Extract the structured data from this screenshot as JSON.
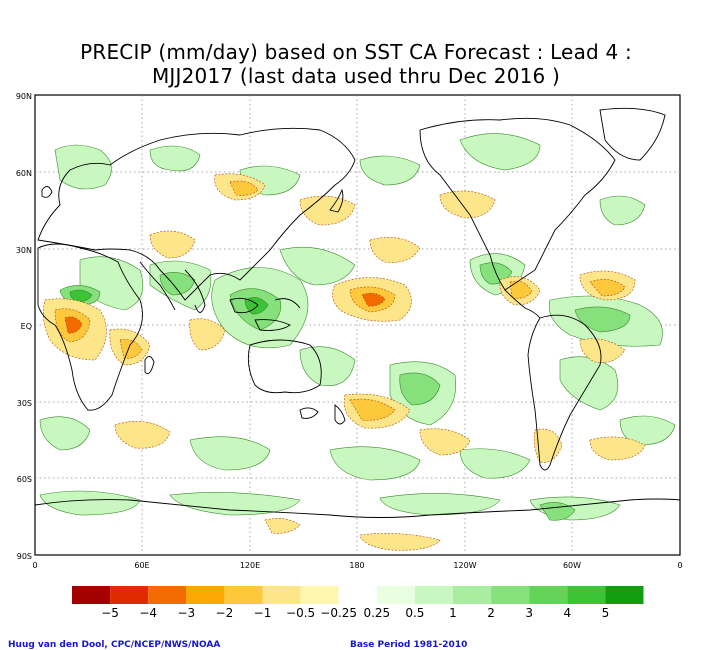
{
  "title_line1": "PRECIP (mm/day) based on SST CA Forecast : Lead 4 :",
  "title_line2": "MJJ2017 (last data used thru Dec 2016 )",
  "lat_labels": [
    "90N",
    "60N",
    "30N",
    "EQ",
    "30S",
    "60S",
    "90S"
  ],
  "lon_labels": [
    "0",
    "60E",
    "120E",
    "180",
    "120W",
    "60W",
    "0"
  ],
  "legend": {
    "colors": [
      "#a50000",
      "#e02a00",
      "#f26a00",
      "#fba800",
      "#fdc83c",
      "#fde58a",
      "#fff7b0",
      "#ffffff",
      "#eaffe0",
      "#c8f8c0",
      "#a9eea0",
      "#86e07c",
      "#64d458",
      "#3cc436",
      "#109e10"
    ],
    "labels": [
      "−5",
      "−4",
      "−3",
      "−2",
      "−1",
      "−0.5",
      "−0.25",
      "0.25",
      "0.5",
      "1",
      "2",
      "3",
      "4",
      "5"
    ]
  },
  "credit_left": "Huug van den Dool, CPC/NCEP/NWS/NOAA",
  "credit_right": "Base Period 1981-2010"
}
